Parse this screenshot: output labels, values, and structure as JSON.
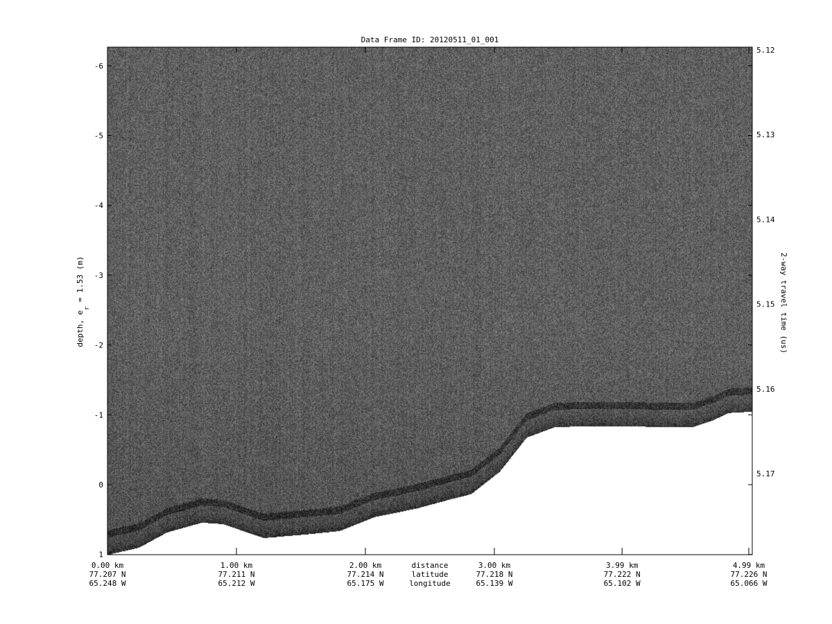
{
  "chart_data": {
    "type": "heatmap",
    "title": "Data Frame ID: 20120511_01_001",
    "ylabel_left": "depth, e",
    "ylabel_left_sub": "r",
    "ylabel_left_rest": " = 1.53 (m)",
    "ylabel_right": "2-way travel time (us)",
    "ylim_left": [
      -6.27,
      1
    ],
    "yticks_left": [
      -6,
      -5,
      -4,
      -3,
      -2,
      -1,
      0,
      1
    ],
    "yticks_right": [
      "5.12",
      "5.13",
      "5.14",
      "5.15",
      "5.16",
      "5.17"
    ],
    "yticks_right_values": [
      5.12,
      5.13,
      5.14,
      5.15,
      5.16,
      5.17
    ],
    "x_row_labels": [
      "distance",
      "latitude",
      "longitude"
    ],
    "xticks": [
      {
        "distance_km": 0.0,
        "distance": "0.00 km",
        "latitude": "77.207 N",
        "longitude": "65.248 W"
      },
      {
        "distance_km": 1.0,
        "distance": "1.00 km",
        "latitude": "77.211 N",
        "longitude": "65.212 W"
      },
      {
        "distance_km": 2.0,
        "distance": "2.00 km",
        "latitude": "77.214 N",
        "longitude": "65.175 W"
      },
      {
        "distance_km": 3.0,
        "distance": "3.00 km",
        "latitude": "77.218 N",
        "longitude": "65.139 W"
      },
      {
        "distance_km": 3.99,
        "distance": "3.99 km",
        "latitude": "77.222 N",
        "longitude": "65.102 W"
      },
      {
        "distance_km": 4.99,
        "distance": "4.99 km",
        "latitude": "77.226 N",
        "longitude": "65.066 W"
      }
    ],
    "xlim_km": [
      0,
      5.0
    ],
    "colormap": "gray",
    "below_surface_color": "#ffffff",
    "reflector_depth_m": {
      "distance_km": [
        0,
        0.24,
        0.46,
        0.73,
        0.89,
        1.21,
        1.53,
        1.8,
        2.07,
        2.39,
        2.61,
        2.82,
        3.04,
        3.25,
        3.47,
        3.74,
        4.01,
        4.28,
        4.54,
        4.7,
        4.81,
        5.0
      ],
      "depth_m": [
        1.0,
        0.9,
        0.68,
        0.54,
        0.56,
        0.76,
        0.71,
        0.66,
        0.46,
        0.34,
        0.23,
        0.13,
        -0.19,
        -0.68,
        -0.83,
        -0.84,
        -0.84,
        -0.83,
        -0.83,
        -0.93,
        -1.03,
        -1.05
      ]
    }
  }
}
